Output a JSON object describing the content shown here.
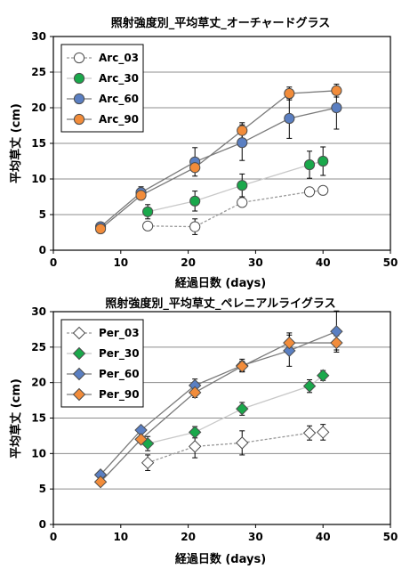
{
  "chart_data": [
    {
      "type": "line",
      "title": "照射強度別_平均草丈_オーチャードグラス",
      "xlabel": "経過日数 (days)",
      "ylabel": "平均草丈 (cm)",
      "xlim": [
        0,
        50
      ],
      "ylim": [
        0,
        30
      ],
      "xticks": [
        "0",
        "10",
        "20",
        "30",
        "40",
        "50"
      ],
      "yticks": [
        "0",
        "5",
        "10",
        "15",
        "20",
        "25",
        "30"
      ],
      "grid": "horizontal",
      "legend": "top-left",
      "series": [
        {
          "name": "Arc_03",
          "marker": "circle",
          "fill": "#ffffff",
          "line": "#999999",
          "dash": true,
          "x": [
            14,
            21,
            28,
            38,
            40
          ],
          "y": [
            3.4,
            3.3,
            6.7,
            8.2,
            8.4
          ],
          "err": [
            0,
            1.1,
            0,
            0,
            0
          ]
        },
        {
          "name": "Arc_30",
          "marker": "circle",
          "fill": "#1aa84b",
          "line": "#c8c8c8",
          "dash": false,
          "x": [
            14,
            21,
            28,
            38,
            40
          ],
          "y": [
            5.4,
            6.9,
            9.1,
            12.0,
            12.5
          ],
          "err": [
            1.0,
            1.4,
            1.6,
            1.9,
            2.0
          ]
        },
        {
          "name": "Arc_60",
          "marker": "circle",
          "fill": "#5a7fc2",
          "line": "#7a7a7a",
          "dash": false,
          "x": [
            7,
            13,
            21,
            28,
            35,
            42
          ],
          "y": [
            3.3,
            8.1,
            12.4,
            15.1,
            18.5,
            20.0
          ],
          "err": [
            0,
            0.8,
            2.0,
            2.5,
            2.8,
            3.0
          ]
        },
        {
          "name": "Arc_90",
          "marker": "circle",
          "fill": "#f28c3a",
          "line": "#7a7a7a",
          "dash": false,
          "x": [
            7,
            13,
            21,
            28,
            35,
            42
          ],
          "y": [
            3.0,
            7.7,
            11.6,
            16.8,
            22.0,
            22.4
          ],
          "err": [
            0,
            0.5,
            0.5,
            1.1,
            0.9,
            0.9
          ]
        }
      ]
    },
    {
      "type": "line",
      "title": "照射強度別_平均草丈_ペレニアルライグラス",
      "xlabel": "経過日数 (days)",
      "ylabel": "平均草丈 (cm)",
      "xlim": [
        0,
        50
      ],
      "ylim": [
        0,
        30
      ],
      "xticks": [
        "0",
        "10",
        "20",
        "30",
        "40",
        "50"
      ],
      "yticks": [
        "0",
        "5",
        "10",
        "15",
        "20",
        "25",
        "30"
      ],
      "grid": "horizontal",
      "legend": "top-left",
      "series": [
        {
          "name": "Per_03",
          "marker": "diamond",
          "fill": "#ffffff",
          "line": "#999999",
          "dash": true,
          "x": [
            14,
            21,
            28,
            38,
            40
          ],
          "y": [
            8.7,
            11.0,
            11.5,
            12.9,
            13.0
          ],
          "err": [
            1.1,
            1.6,
            1.7,
            1.0,
            1.1
          ]
        },
        {
          "name": "Per_30",
          "marker": "diamond",
          "fill": "#1aa84b",
          "line": "#c8c8c8",
          "dash": false,
          "x": [
            14,
            21,
            28,
            38,
            40
          ],
          "y": [
            11.4,
            13.0,
            16.3,
            19.5,
            21.0
          ],
          "err": [
            1.0,
            0.8,
            0.9,
            0.9,
            0.7
          ]
        },
        {
          "name": "Per_60",
          "marker": "diamond",
          "fill": "#5a7fc2",
          "line": "#7a7a7a",
          "dash": false,
          "x": [
            7,
            13,
            21,
            28,
            35,
            42
          ],
          "y": [
            7.0,
            13.3,
            19.6,
            22.4,
            24.5,
            27.2
          ],
          "err": [
            0,
            0,
            0.9,
            0.9,
            2.2,
            2.9
          ]
        },
        {
          "name": "Per_90",
          "marker": "diamond",
          "fill": "#f28c3a",
          "line": "#7a7a7a",
          "dash": false,
          "x": [
            7,
            13,
            21,
            28,
            35,
            42
          ],
          "y": [
            6.0,
            12.0,
            18.6,
            22.3,
            25.6,
            25.6
          ],
          "err": [
            0,
            0,
            0.7,
            0.7,
            1.4,
            1.0
          ]
        }
      ]
    }
  ]
}
